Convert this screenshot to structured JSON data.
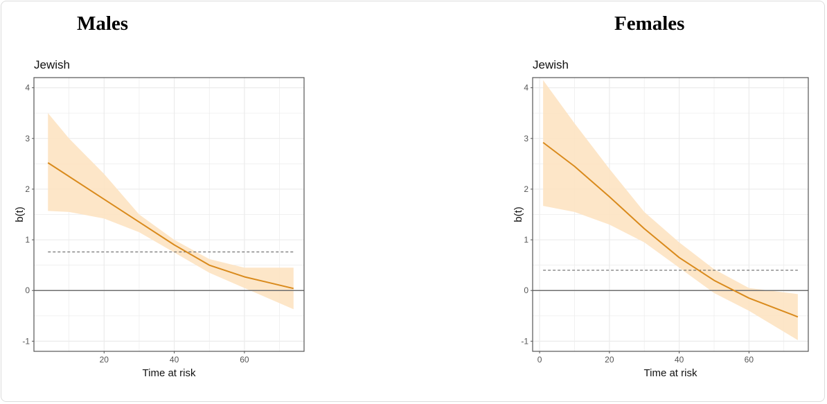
{
  "panel_titles": [
    "Males",
    "Females"
  ],
  "colors": {
    "line": "#d98a1c",
    "band": "#fde3c2",
    "reference": "#555555",
    "zero": "#6e6e6e",
    "grid": "#ebebeb"
  },
  "chart_data": [
    {
      "type": "line",
      "title": "Jewish",
      "xlabel": "Time at risk",
      "ylabel": "b(t)",
      "xlim": [
        0,
        77
      ],
      "ylim": [
        -1.2,
        4.2
      ],
      "xticks": [
        20,
        40,
        60
      ],
      "yticks": [
        -1,
        0,
        1,
        2,
        3,
        4
      ],
      "grid": true,
      "x": [
        4,
        10,
        20,
        30,
        40,
        50,
        60,
        74
      ],
      "estimate": [
        2.52,
        2.25,
        1.8,
        1.35,
        0.9,
        0.5,
        0.27,
        0.04
      ],
      "upper": [
        3.5,
        3.0,
        2.3,
        1.5,
        1.0,
        0.62,
        0.45,
        0.45
      ],
      "lower": [
        1.57,
        1.55,
        1.42,
        1.15,
        0.75,
        0.35,
        0.05,
        -0.37
      ],
      "reference_line": 0.76,
      "zero_line": 0
    },
    {
      "type": "line",
      "title": "Jewish",
      "xlabel": "Time at risk",
      "ylabel": "b(t)",
      "xlim": [
        -2,
        77
      ],
      "ylim": [
        -1.2,
        4.2
      ],
      "xticks": [
        0,
        20,
        40,
        60
      ],
      "yticks": [
        -1,
        0,
        1,
        2,
        3,
        4
      ],
      "grid": true,
      "x": [
        1,
        10,
        20,
        30,
        40,
        50,
        60,
        74
      ],
      "estimate": [
        2.92,
        2.45,
        1.85,
        1.22,
        0.65,
        0.2,
        -0.15,
        -0.52
      ],
      "upper": [
        4.15,
        3.3,
        2.4,
        1.55,
        0.95,
        0.42,
        0.05,
        -0.07
      ],
      "lower": [
        1.67,
        1.55,
        1.3,
        0.95,
        0.45,
        -0.05,
        -0.4,
        -0.98
      ],
      "reference_line": 0.4,
      "zero_line": 0
    }
  ]
}
